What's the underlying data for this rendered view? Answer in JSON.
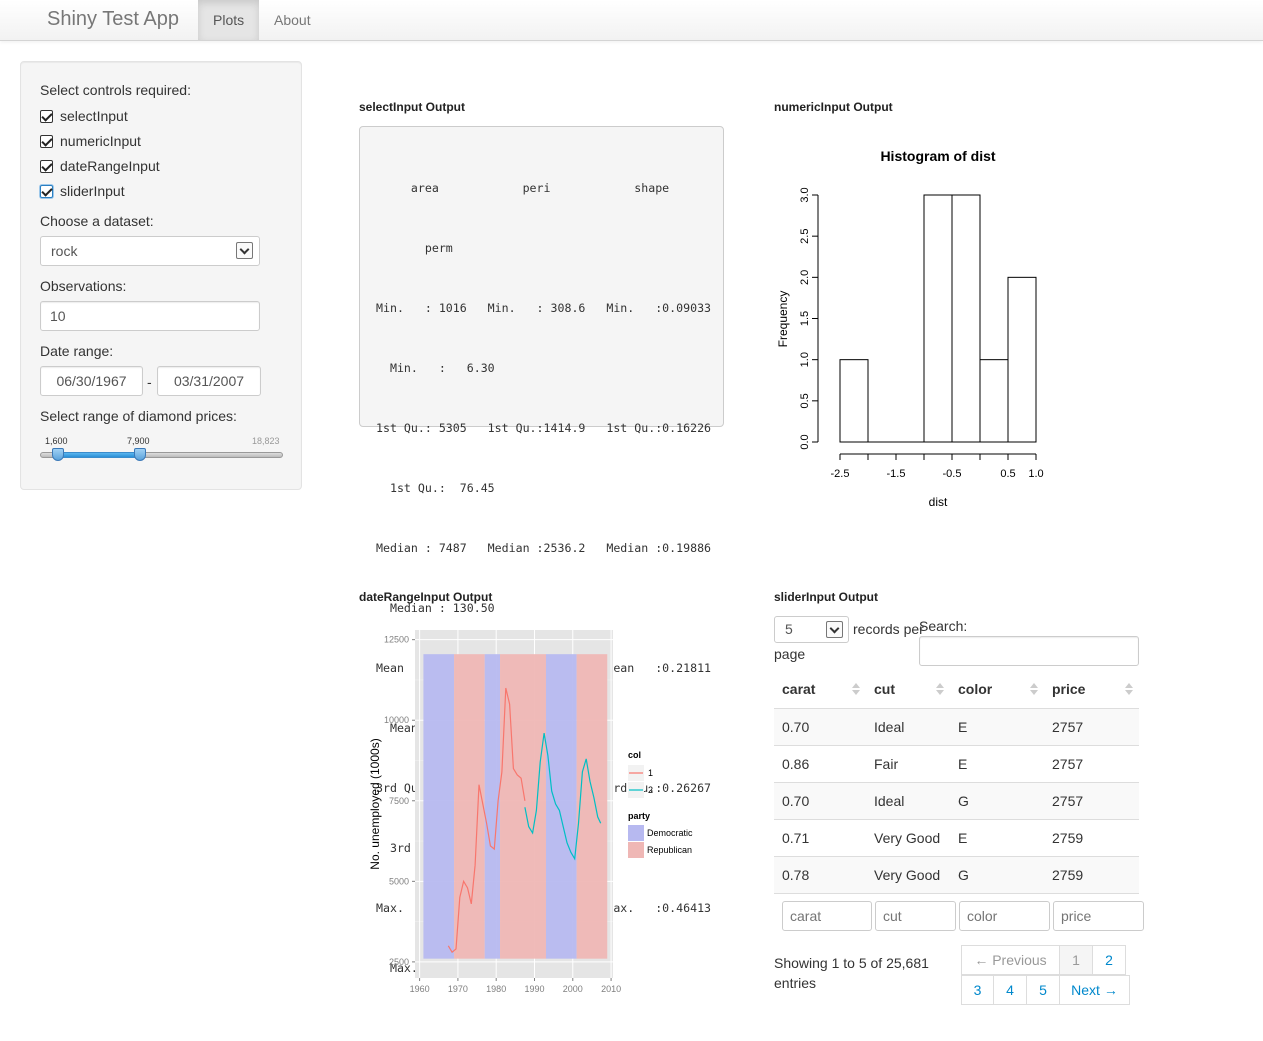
{
  "navbar": {
    "brand": "Shiny Test App",
    "tabs": [
      {
        "label": "Plots",
        "active": true
      },
      {
        "label": "About",
        "active": false
      }
    ]
  },
  "sidebar": {
    "controls_label": "Select controls required:",
    "checkboxes": [
      {
        "label": "selectInput",
        "checked": true
      },
      {
        "label": "numericInput",
        "checked": true
      },
      {
        "label": "dateRangeInput",
        "checked": true
      },
      {
        "label": "sliderInput",
        "checked": true
      }
    ],
    "dataset_label": "Choose a dataset:",
    "dataset_value": "rock",
    "observations_label": "Observations:",
    "observations_value": "10",
    "date_range_label": "Date range:",
    "date_start": "06/30/1967",
    "date_sep": "-",
    "date_end": "03/31/2007",
    "slider_label": "Select range of diamond prices:",
    "slider_low": "1,600",
    "slider_high": "7,900",
    "slider_max": "18,823",
    "slider_fraction_low": 0.085,
    "slider_fraction_high": 0.42
  },
  "select_output": {
    "title": "selectInput Output",
    "lines": [
      "     area            peri            shape",
      "       perm",
      "Min.   : 1016   Min.   : 308.6   Min.   :0.09033",
      "  Min.   :   6.30",
      "1st Qu.: 5305   1st Qu.:1414.9   1st Qu.:0.16226",
      "  1st Qu.:  76.45",
      "Median : 7487   Median :2536.2   Median :0.19886",
      "  Median : 130.50",
      "Mean   : 7188   Mean   :2682.2   Mean   :0.21811",
      "  Mean   : 415.45",
      "3rd Qu.: 8870   3rd Qu.:3989.5   3rd Qu.:0.26267",
      "  3rd Qu.: 777.50",
      "Max.   :12212   Max.   :4864.2   Max.   :0.46413",
      "  Max.   :1300.00"
    ]
  },
  "numeric_output": {
    "title": "numericInput Output",
    "chart_data": {
      "type": "bar",
      "title": "Histogram of dist",
      "xlabel": "dist",
      "ylabel": "Frequency",
      "bins": [
        {
          "from": -2.5,
          "to": -2.0,
          "count": 1
        },
        {
          "from": -2.0,
          "to": -1.5,
          "count": 0
        },
        {
          "from": -1.5,
          "to": -1.0,
          "count": 0
        },
        {
          "from": -1.0,
          "to": -0.5,
          "count": 3
        },
        {
          "from": -0.5,
          "to": 0.0,
          "count": 3
        },
        {
          "from": 0.0,
          "to": 0.5,
          "count": 1
        },
        {
          "from": 0.5,
          "to": 1.0,
          "count": 2
        }
      ],
      "xticks": [
        "-2.5",
        "-1.5",
        "-0.5",
        "0.5",
        "1.0"
      ],
      "yticks": [
        "0.0",
        "0.5",
        "1.0",
        "1.5",
        "2.0",
        "2.5",
        "3.0"
      ],
      "ylim": [
        0,
        3
      ]
    }
  },
  "daterange_output": {
    "title": "dateRangeInput Output",
    "chart_data": {
      "type": "line",
      "ylabel": "No. unemployed (1000s)",
      "xlim": [
        1960,
        2010
      ],
      "ylim": [
        2500,
        12500
      ],
      "xticks": [
        "1960",
        "1970",
        "1980",
        "1990",
        "2000",
        "2010"
      ],
      "yticks": [
        "2500",
        "5000",
        "7500",
        "10000",
        "12500"
      ],
      "legend_col_title": "col",
      "legend_col_items": [
        "1",
        "2"
      ],
      "legend_party_title": "party",
      "legend_party_items": [
        "Democratic",
        "Republican"
      ],
      "colors": {
        "col1": "#f8766d",
        "col2": "#00bfc4",
        "democratic": "#b7b9f0",
        "republican": "#efb7b5"
      },
      "party_periods": [
        {
          "party": "Democratic",
          "start": 1961,
          "end": 1969
        },
        {
          "party": "Republican",
          "start": 1969,
          "end": 1977
        },
        {
          "party": "Democratic",
          "start": 1977,
          "end": 1981
        },
        {
          "party": "Republican",
          "start": 1981,
          "end": 1993
        },
        {
          "party": "Democratic",
          "start": 1993,
          "end": 2001
        },
        {
          "party": "Republican",
          "start": 2001,
          "end": 2009
        }
      ],
      "series": [
        {
          "name": "1",
          "color": "#f8766d",
          "x": [
            1967.5,
            1968.5,
            1969.5,
            1970.5,
            1971.5,
            1972.5,
            1973.5,
            1974.5,
            1975.5,
            1976.5,
            1977.5,
            1978.5,
            1979.5,
            1980.5,
            1981.5,
            1982.5,
            1983.5,
            1984.5,
            1985.5,
            1986.5,
            1987.5
          ],
          "y": [
            3000,
            2800,
            2900,
            4500,
            5000,
            4800,
            4300,
            5500,
            8000,
            7400,
            6800,
            6100,
            6000,
            7500,
            8400,
            11000,
            10500,
            8500,
            8300,
            8200,
            7500
          ]
        },
        {
          "name": "2",
          "color": "#00bfc4",
          "x": [
            1987.5,
            1988.5,
            1989.5,
            1990.5,
            1991.5,
            1992.5,
            1993.5,
            1994.5,
            1995.5,
            1996.5,
            1997.5,
            1998.5,
            1999.5,
            2000.5,
            2001.5,
            2002.5,
            2003.5,
            2004.5,
            2005.5,
            2006.5,
            2007.3
          ],
          "y": [
            7300,
            6700,
            6500,
            7200,
            8700,
            9600,
            8900,
            7800,
            7400,
            7200,
            6700,
            6200,
            5900,
            5700,
            6800,
            8400,
            8800,
            8100,
            7600,
            7000,
            6800
          ]
        }
      ]
    }
  },
  "slider_output": {
    "title": "sliderInput Output",
    "length_value": "5",
    "records_per_label": "records per",
    "page_label": "page",
    "search_label": "Search:",
    "columns": [
      "carat",
      "cut",
      "color",
      "price"
    ],
    "rows": [
      [
        "0.70",
        "Ideal",
        "E",
        "2757"
      ],
      [
        "0.86",
        "Fair",
        "E",
        "2757"
      ],
      [
        "0.70",
        "Ideal",
        "G",
        "2757"
      ],
      [
        "0.71",
        "Very Good",
        "E",
        "2759"
      ],
      [
        "0.78",
        "Very Good",
        "G",
        "2759"
      ]
    ],
    "filters": [
      "carat",
      "cut",
      "color",
      "price"
    ],
    "info_line1": "Showing 1 to 5 of 25,681",
    "info_line2": "entries",
    "pager": {
      "previous": "← Previous",
      "pages": [
        "1",
        "2",
        "3",
        "4",
        "5"
      ],
      "next": "Next →"
    }
  }
}
